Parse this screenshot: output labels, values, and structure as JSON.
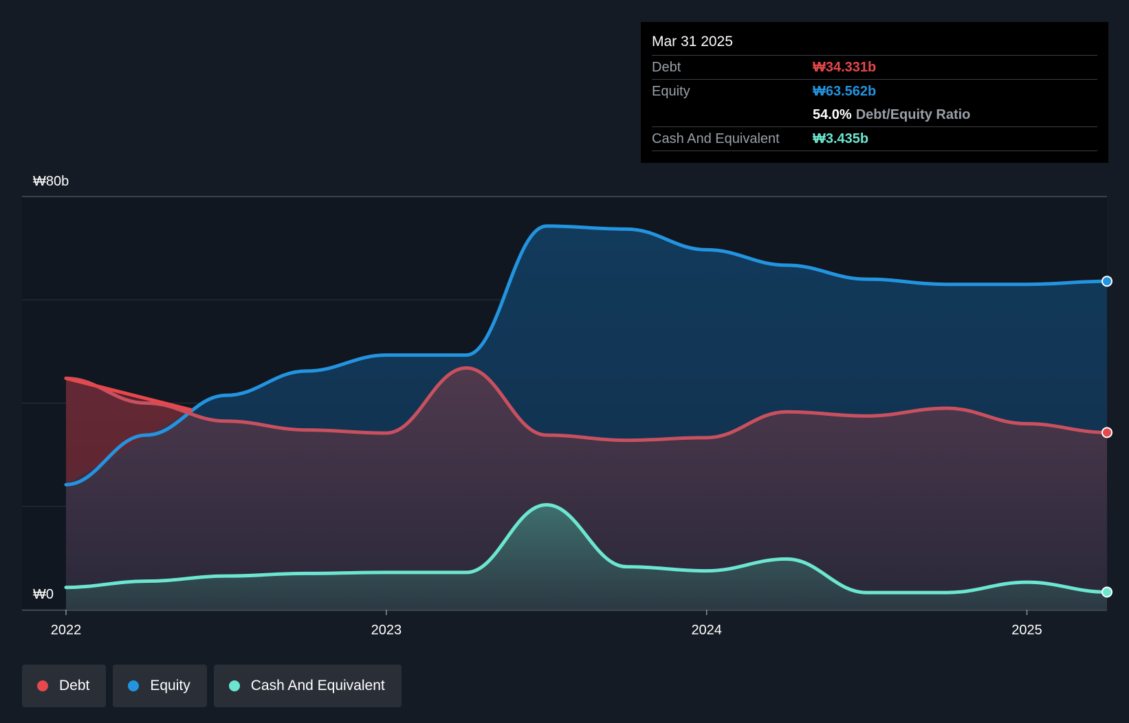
{
  "tooltip": {
    "date": "Mar 31 2025",
    "debt_label": "Debt",
    "debt_value": "₩34.331b",
    "equity_label": "Equity",
    "equity_value": "₩63.562b",
    "ratio_value": "54.0%",
    "ratio_label": "Debt/Equity Ratio",
    "cash_label": "Cash And Equivalent",
    "cash_value": "₩3.435b"
  },
  "legend": {
    "debt": "Debt",
    "equity": "Equity",
    "cash": "Cash And Equivalent"
  },
  "colors": {
    "debt": "#e5484d",
    "equity": "#2394df",
    "cash": "#6ce6d0",
    "background": "#151b24"
  },
  "chart_data": {
    "type": "area",
    "y_axis_labels": [
      "₩80b",
      "₩0"
    ],
    "ylim": [
      0,
      80
    ],
    "xlim": [
      2022.0,
      2025.25
    ],
    "x_ticks": [
      {
        "value": 2022,
        "label": "2022"
      },
      {
        "value": 2023,
        "label": "2023"
      },
      {
        "value": 2024,
        "label": "2024"
      },
      {
        "value": 2025,
        "label": "2025"
      }
    ],
    "grid": true,
    "legend_position": "bottom-left",
    "series": [
      {
        "name": "Debt",
        "x": [
          2022.0,
          2022.25,
          2022.5,
          2022.75,
          2023.0,
          2023.25,
          2023.5,
          2023.75,
          2024.0,
          2024.25,
          2024.5,
          2024.75,
          2025.0,
          2025.25
        ],
        "values": [
          44.8,
          40.0,
          36.5,
          34.8,
          34.2,
          46.8,
          33.8,
          32.8,
          33.3,
          38.3,
          37.5,
          39.0,
          36.0,
          34.3
        ]
      },
      {
        "name": "Equity",
        "x": [
          2022.0,
          2022.25,
          2022.5,
          2022.75,
          2023.0,
          2023.25,
          2023.5,
          2023.75,
          2024.0,
          2024.25,
          2024.5,
          2024.75,
          2025.0,
          2025.25
        ],
        "values": [
          24.2,
          33.8,
          41.5,
          46.2,
          49.3,
          49.3,
          74.3,
          73.7,
          69.7,
          66.7,
          64.0,
          63.0,
          63.0,
          63.6
        ]
      },
      {
        "name": "Cash And Equivalent",
        "x": [
          2022.0,
          2022.25,
          2022.5,
          2022.75,
          2023.0,
          2023.25,
          2023.5,
          2023.75,
          2024.0,
          2024.25,
          2024.5,
          2024.75,
          2025.0,
          2025.25
        ],
        "values": [
          4.3,
          5.5,
          6.5,
          7.0,
          7.2,
          7.2,
          20.3,
          8.3,
          7.5,
          9.8,
          3.3,
          3.3,
          5.3,
          3.4
        ]
      }
    ]
  }
}
